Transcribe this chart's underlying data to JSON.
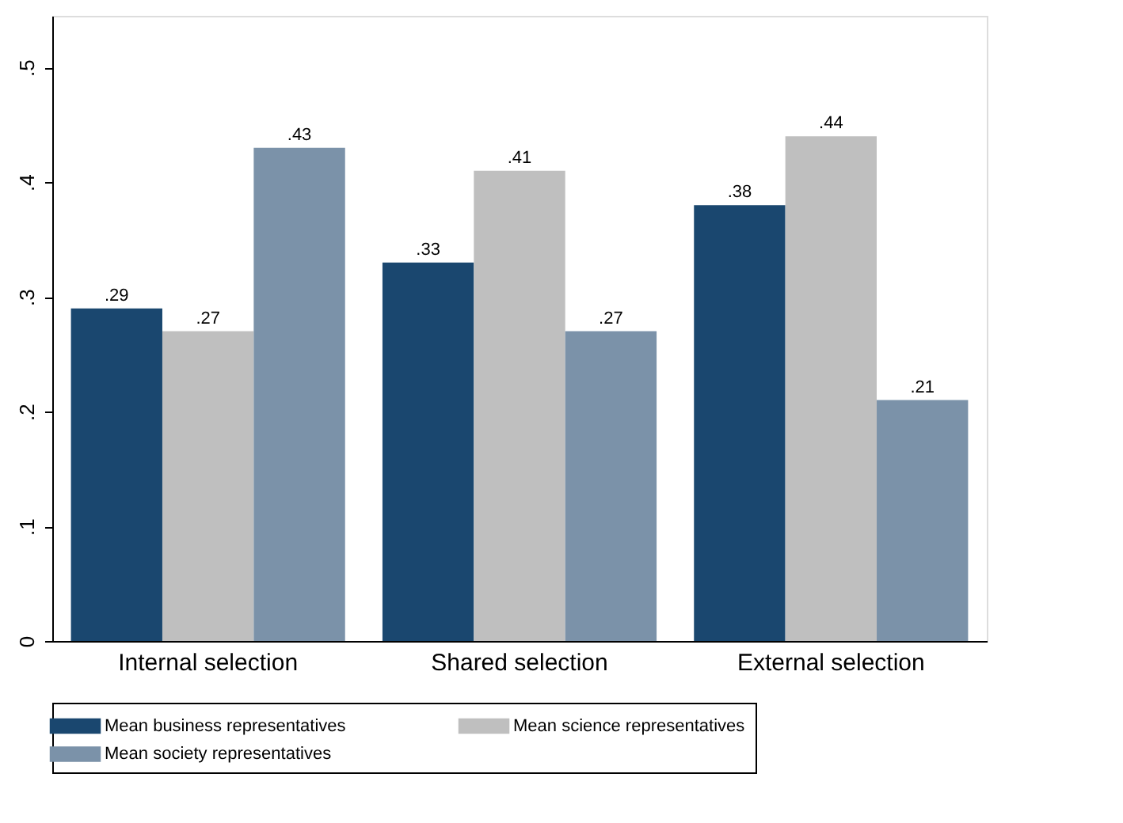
{
  "chart_data": {
    "type": "bar",
    "categories": [
      "Internal selection",
      "Shared selection",
      "External selection"
    ],
    "series": [
      {
        "name": "Mean business representatives",
        "color": "#1a476f",
        "values": [
          0.29,
          0.33,
          0.38
        ],
        "value_labels": [
          ".29",
          ".33",
          ".38"
        ]
      },
      {
        "name": "Mean science representatives",
        "color": "#bfbfbf",
        "values": [
          0.27,
          0.41,
          0.44
        ],
        "value_labels": [
          ".27",
          ".41",
          ".44"
        ]
      },
      {
        "name": "Mean society representatives",
        "color": "#7b92a9",
        "values": [
          0.43,
          0.27,
          0.21
        ],
        "value_labels": [
          ".43",
          ".27",
          ".21"
        ]
      }
    ],
    "ylim": [
      0,
      0.545
    ],
    "yticks": [
      {
        "value": 0,
        "label": "0"
      },
      {
        "value": 0.1,
        "label": ".1"
      },
      {
        "value": 0.2,
        "label": ".2"
      },
      {
        "value": 0.3,
        "label": ".3"
      },
      {
        "value": 0.4,
        "label": ".4"
      },
      {
        "value": 0.5,
        "label": ".5"
      }
    ],
    "grid": false,
    "legend": "bottom"
  }
}
